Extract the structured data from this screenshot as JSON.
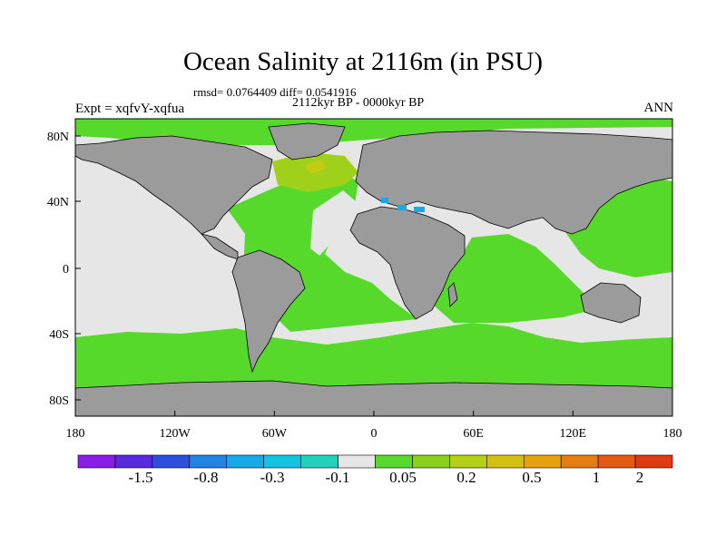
{
  "title": "Ocean Salinity at 2116m (in PSU)",
  "stats": "rmsd= 0.0764409 diff= 0.0541916",
  "period": "2112kyr BP - 0000kyr BP",
  "experiment": "Expt = xqfvY-xqfua",
  "season": "ANN",
  "lat_labels": [
    "80N",
    "40N",
    "0",
    "40S",
    "80S"
  ],
  "lon_labels": [
    "180",
    "120W",
    "60W",
    "0",
    "60E",
    "120E",
    "180"
  ],
  "colorbar": {
    "labels": [
      "-1.5",
      "-0.8",
      "-0.3",
      "-0.1",
      "0.05",
      "0.2",
      "0.5",
      "1",
      "2"
    ],
    "colors": [
      "#8a1de8",
      "#5a2ae0",
      "#2e4ee0",
      "#1f84e6",
      "#18a9e8",
      "#11c4e0",
      "#22d2b8",
      "#e6e6e6",
      "#56d92a",
      "#8ad11c",
      "#b3cf16",
      "#d2c20f",
      "#e6a30e",
      "#e67d10",
      "#e55a13",
      "#e03a14"
    ]
  },
  "map_colors": {
    "land": "#9b9b9b",
    "near_zero": "#e6e6e6",
    "positive_small": "#56d92a",
    "positive_mid": "#a0d11a",
    "positive_high": "#c2cc15",
    "negative_small": "#18a9e8"
  }
}
